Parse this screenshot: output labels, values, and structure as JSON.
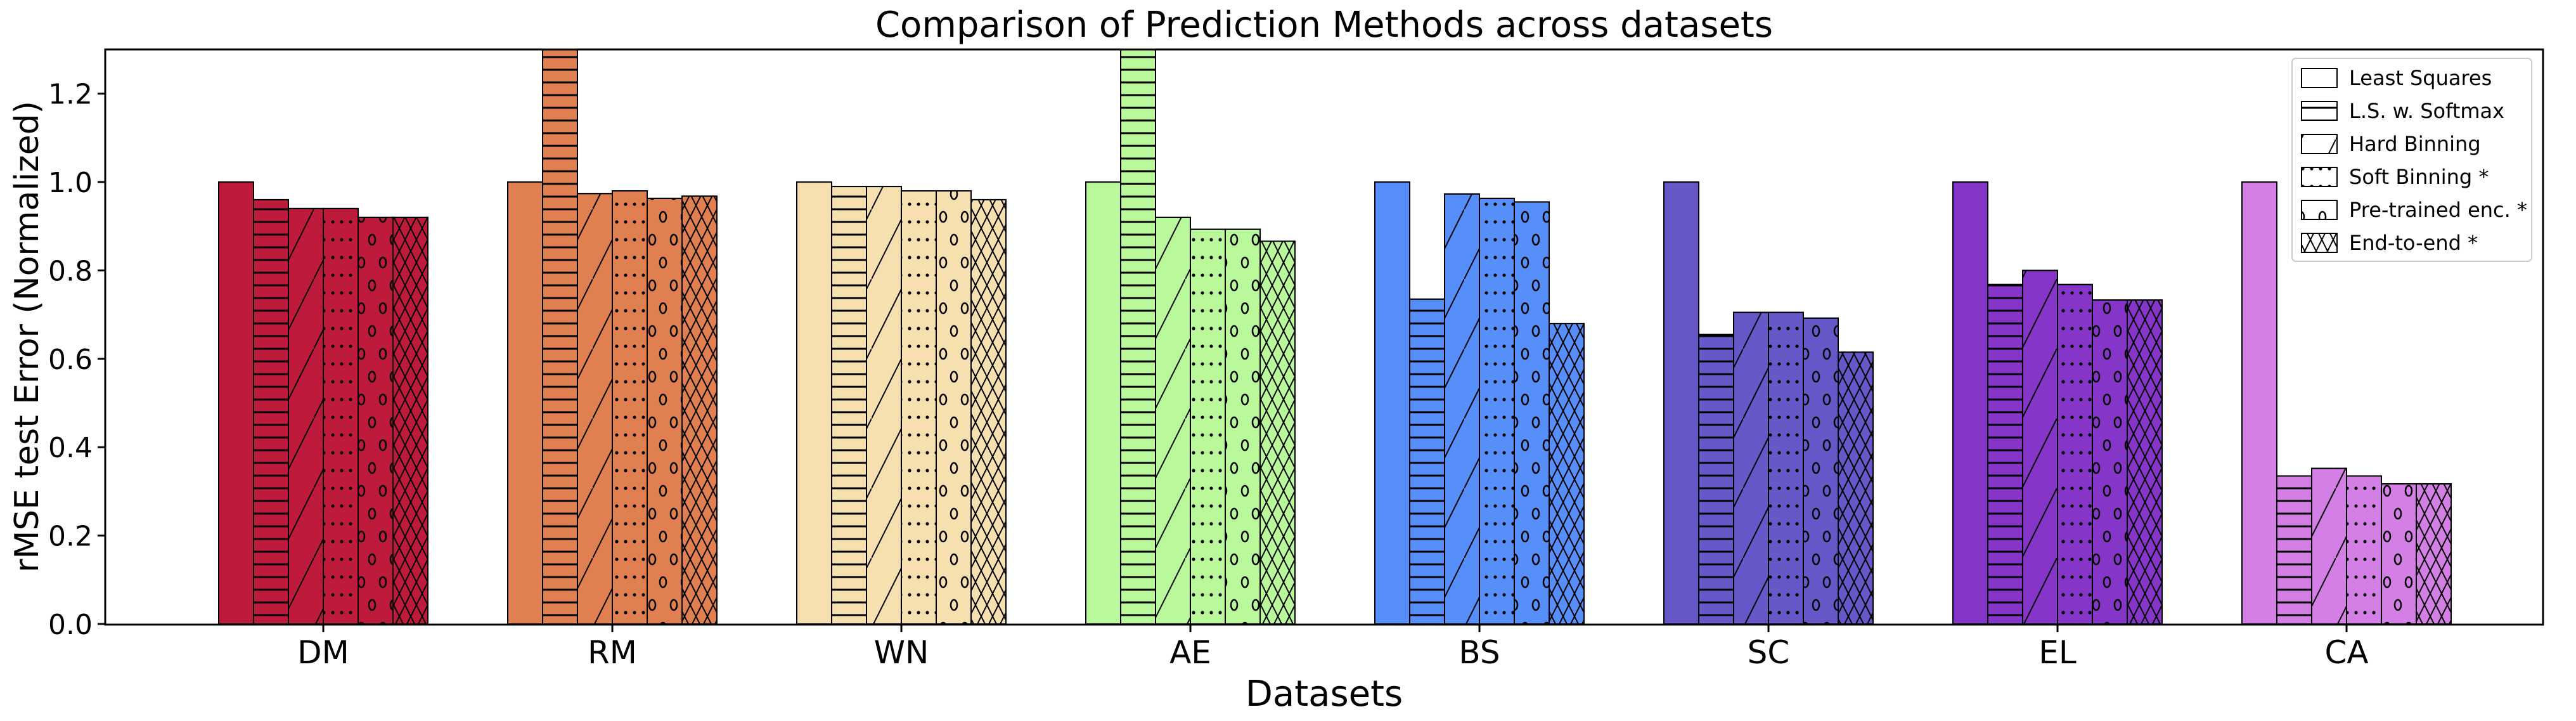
{
  "chart_data": {
    "type": "bar",
    "title": "Comparison of Prediction Methods across datasets",
    "xlabel": "Datasets",
    "ylabel": "rMSE test Error (Normalized)",
    "ylim": [
      0,
      1.3
    ],
    "yticks": [
      "0.0",
      "0.2",
      "0.4",
      "0.6",
      "0.8",
      "1.0",
      "1.2"
    ],
    "grid": false,
    "legend_position": "top-right",
    "categories": [
      "DM",
      "RM",
      "WN",
      "AE",
      "BS",
      "SC",
      "EL",
      "CA"
    ],
    "category_colors": [
      "#be1a3c",
      "#e07f50",
      "#f7e0b0",
      "#b9f99b",
      "#568efa",
      "#6658c8",
      "#8535c8",
      "#d47fe6"
    ],
    "series": [
      {
        "name": "Least Squares",
        "hatch": "none",
        "values": [
          1.0,
          1.0,
          1.0,
          1.0,
          1.0,
          1.0,
          1.0,
          1.0
        ]
      },
      {
        "name": "L.S. w. Softmax",
        "hatch": "horizontal",
        "values": [
          0.96,
          1.4,
          0.99,
          1.4,
          0.735,
          0.655,
          0.768,
          0.335
        ]
      },
      {
        "name": "Hard Binning",
        "hatch": "diagonal",
        "values": [
          0.94,
          0.974,
          0.99,
          0.92,
          0.973,
          0.705,
          0.8,
          0.352
        ]
      },
      {
        "name": "Soft Binning *",
        "hatch": "dots",
        "values": [
          0.94,
          0.98,
          0.98,
          0.893,
          0.963,
          0.705,
          0.768,
          0.335
        ]
      },
      {
        "name": "Pre-trained enc. *",
        "hatch": "circles",
        "values": [
          0.92,
          0.963,
          0.98,
          0.893,
          0.955,
          0.692,
          0.733,
          0.317
        ]
      },
      {
        "name": "End-to-end *",
        "hatch": "crosshatch",
        "values": [
          0.92,
          0.968,
          0.96,
          0.866,
          0.68,
          0.615,
          0.733,
          0.317
        ]
      }
    ]
  }
}
